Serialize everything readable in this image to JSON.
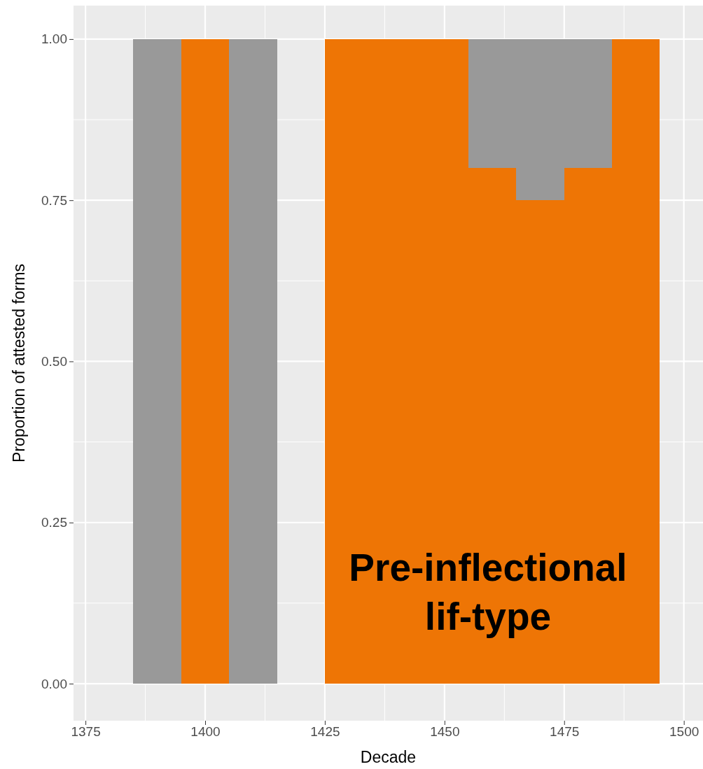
{
  "chart_data": {
    "type": "bar",
    "stacked": true,
    "xlabel": "Decade",
    "ylabel": "Proportion of attested forms",
    "x": [
      1390,
      1400,
      1410,
      1430,
      1440,
      1450,
      1460,
      1470,
      1480,
      1490
    ],
    "series": [
      {
        "color": "#ee7505",
        "values": [
          0,
          1,
          0,
          1,
          1,
          1,
          0.8,
          0.75,
          0.8,
          1
        ]
      },
      {
        "color": "#999999",
        "values": [
          1,
          0,
          1,
          0,
          0,
          0,
          0.2,
          0.25,
          0.2,
          0
        ]
      }
    ],
    "xlim": [
      1372.5,
      1504
    ],
    "xticks": [
      1375,
      1400,
      1425,
      1450,
      1475,
      1500
    ],
    "ylim": [
      -0.0575,
      1.052
    ],
    "yticks": [
      {
        "value": 0,
        "label": "0.00"
      },
      {
        "value": 0.25,
        "label": "0.25"
      },
      {
        "value": 0.5,
        "label": "0.50"
      },
      {
        "value": 0.75,
        "label": "0.75"
      },
      {
        "value": 1,
        "label": "1.00"
      }
    ],
    "grid": true,
    "annotations": [
      "Pre-inflectional lif-type"
    ]
  }
}
